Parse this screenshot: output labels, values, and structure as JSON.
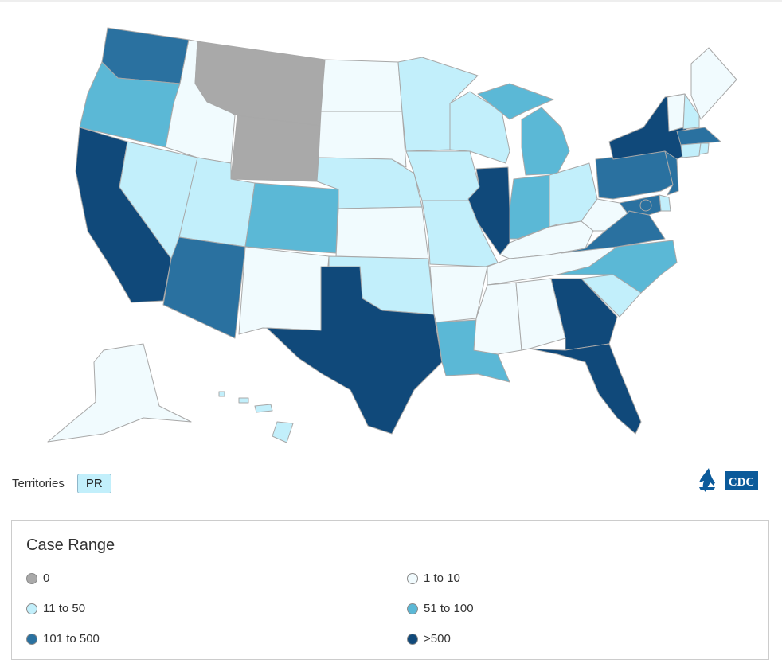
{
  "colors": {
    "bin0": "#a9a9a9",
    "bin1": "#f1fbfe",
    "bin2": "#c2effb",
    "bin3": "#5bb8d6",
    "bin4": "#2a71a0",
    "bin5": "#10497a",
    "state_border": "#a8a8a8",
    "cdc_blue": "#0b5a9a"
  },
  "states": {
    "WA": "bin4",
    "OR": "bin3",
    "CA": "bin5",
    "NV": "bin2",
    "ID": "bin1",
    "MT": "bin0",
    "WY": "bin0",
    "UT": "bin2",
    "AZ": "bin4",
    "CO": "bin3",
    "NM": "bin1",
    "ND": "bin1",
    "SD": "bin1",
    "NE": "bin2",
    "KS": "bin1",
    "OK": "bin2",
    "TX": "bin5",
    "MN": "bin2",
    "IA": "bin2",
    "MO": "bin2",
    "AR": "bin1",
    "LA": "bin3",
    "WI": "bin2",
    "IL": "bin5",
    "MI": "bin3",
    "IN": "bin3",
    "OH": "bin2",
    "KY": "bin1",
    "TN": "bin1",
    "MS": "bin1",
    "AL": "bin1",
    "GA": "bin5",
    "FL": "bin5",
    "SC": "bin2",
    "NC": "bin3",
    "VA": "bin4",
    "WV": "bin1",
    "PA": "bin4",
    "NY": "bin5",
    "VT": "bin1",
    "NH": "bin2",
    "ME": "bin1",
    "MA": "bin4",
    "RI": "bin2",
    "CT": "bin2",
    "NJ": "bin4",
    "DE": "bin2",
    "MD": "bin4",
    "DC": "bin4",
    "AK": "bin1",
    "HI": "bin2"
  },
  "territories": {
    "label": "Territories",
    "items": [
      {
        "code": "PR",
        "color": "bin2"
      }
    ]
  },
  "legend": {
    "title": "Case Range",
    "items": [
      {
        "label": "0",
        "color": "bin0"
      },
      {
        "label": "1 to 10",
        "color": "bin1"
      },
      {
        "label": "11 to 50",
        "color": "bin2"
      },
      {
        "label": "51 to 100",
        "color": "bin3"
      },
      {
        "label": "101 to 500",
        "color": "bin4"
      },
      {
        "label": ">500",
        "color": "bin5"
      }
    ]
  },
  "logo": {
    "text": "CDC",
    "icon": "hhs-eagle-icon"
  }
}
